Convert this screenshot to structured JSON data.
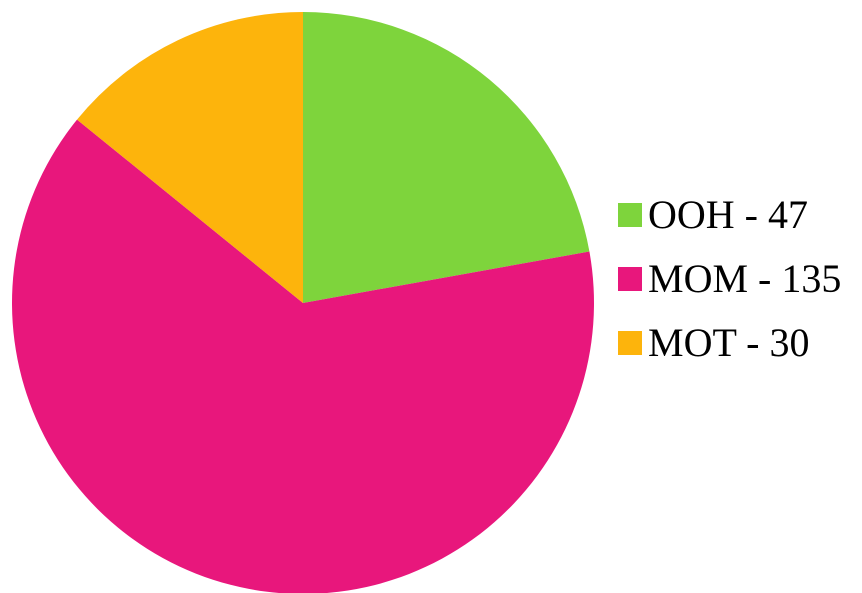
{
  "chart_data": {
    "type": "pie",
    "title": "",
    "start_angle_deg": 0,
    "direction": "clockwise",
    "legend_position": "right",
    "slices": [
      {
        "label": "OOH",
        "value": 47,
        "color": "#7ED43C"
      },
      {
        "label": "MOM",
        "value": 135,
        "color": "#E8177C"
      },
      {
        "label": "MOT",
        "value": 30,
        "color": "#FDB40C"
      }
    ]
  },
  "legend": {
    "items": [
      {
        "text": "OOH - 47",
        "color": "#7ED43C"
      },
      {
        "text": "MOM - 135",
        "color": "#E8177C"
      },
      {
        "text": "MOT - 30",
        "color": "#FDB40C"
      }
    ]
  }
}
